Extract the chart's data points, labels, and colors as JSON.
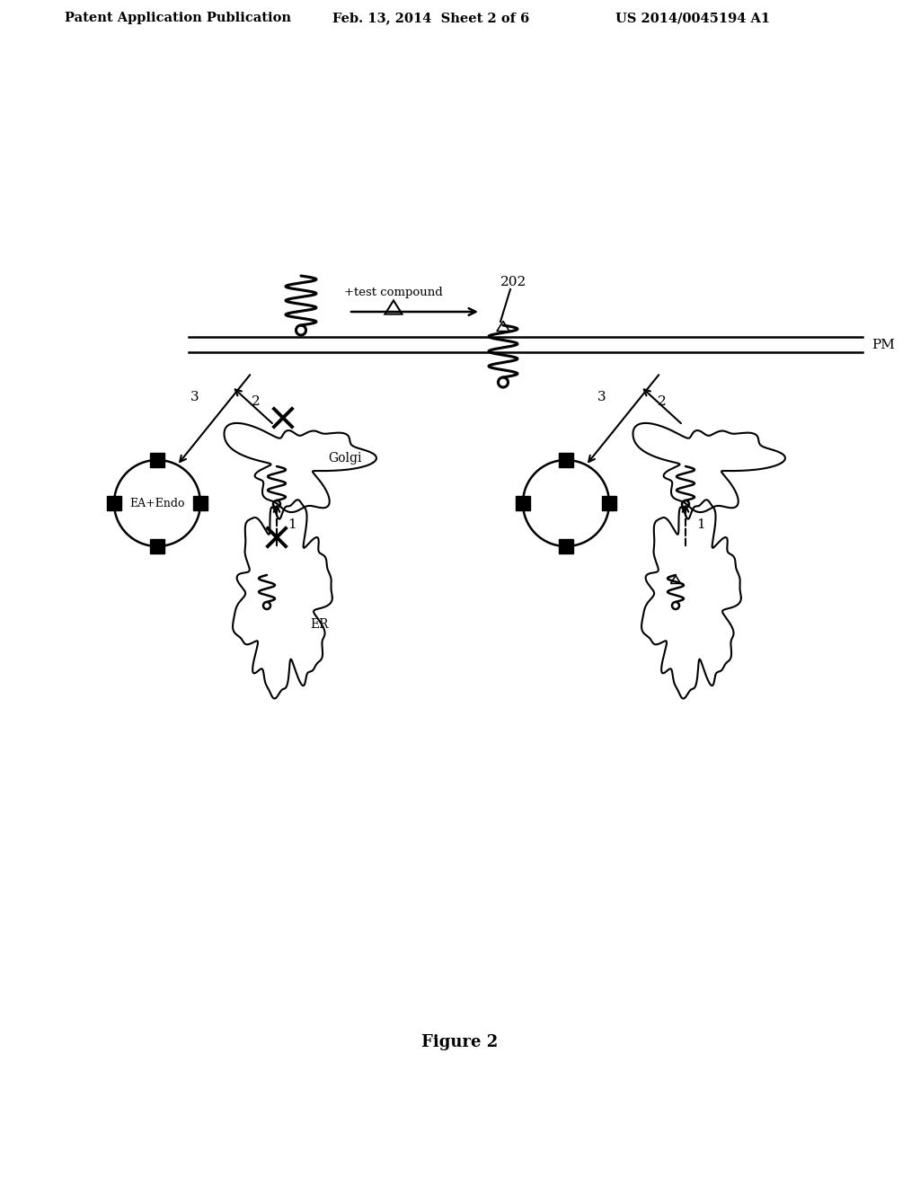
{
  "bg_color": "#ffffff",
  "header_text1": "Patent Application Publication",
  "header_text2": "Feb. 13, 2014  Sheet 2 of 6",
  "header_text3": "US 2014/0045194 A1",
  "figure_label": "Figure 2",
  "pm_label": "PM",
  "golgi_label": "Golgi",
  "er_label": "ER",
  "ea_endo_label": "EA+Endo",
  "test_compound_label": "+test compound",
  "label_202": "202"
}
